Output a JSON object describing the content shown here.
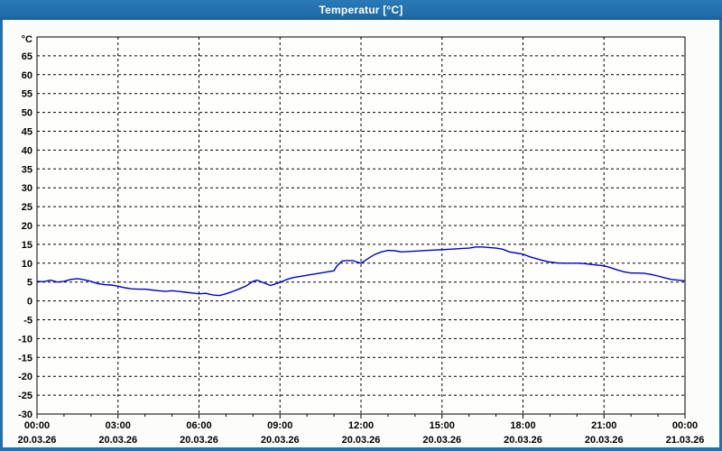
{
  "window": {
    "title": "Temperatur [°C]"
  },
  "colors": {
    "titlebar": "#2171ae",
    "title_text": "#ffffff",
    "window_border": "#2171ae",
    "content_background": "#fcfdfa",
    "plot_background": "#fefefc",
    "grid": "#000000",
    "frame": "#000000",
    "tick_label": "#000000",
    "line": "#0000c8"
  },
  "chart_data": {
    "type": "line",
    "title": "Temperatur [°C]",
    "y_unit_label": "°C",
    "ylim": [
      -30,
      70
    ],
    "y_tick_step": 5,
    "y_tick_labels": [
      65,
      60,
      55,
      50,
      45,
      40,
      35,
      30,
      25,
      20,
      15,
      10,
      5,
      0,
      -5,
      -10,
      -15,
      -20,
      -25,
      -30
    ],
    "x_range_hours": [
      0,
      24
    ],
    "x_major_step_hours": 3,
    "x_minor_step_hours": 1,
    "x_tick_times": [
      "00:00",
      "03:00",
      "06:00",
      "09:00",
      "12:00",
      "15:00",
      "18:00",
      "21:00",
      "00:00"
    ],
    "x_tick_dates": [
      "20.03.26",
      "20.03.26",
      "20.03.26",
      "20.03.26",
      "20.03.26",
      "20.03.26",
      "20.03.26",
      "20.03.26",
      "21.03.26"
    ],
    "grid": "dashed",
    "legend": "none",
    "series": [
      {
        "name": "Temperatur",
        "color": "#0000c8",
        "points": [
          [
            0,
            5.2
          ],
          [
            0.25,
            5.1
          ],
          [
            0.5,
            5.5
          ],
          [
            0.75,
            5.0
          ],
          [
            1,
            5.2
          ],
          [
            1.25,
            5.7
          ],
          [
            1.5,
            5.9
          ],
          [
            1.75,
            5.6
          ],
          [
            2,
            5.2
          ],
          [
            2.25,
            4.6
          ],
          [
            2.5,
            4.3
          ],
          [
            2.75,
            4.2
          ],
          [
            3,
            3.9
          ],
          [
            3.25,
            3.5
          ],
          [
            3.5,
            3.2
          ],
          [
            3.75,
            3.1
          ],
          [
            4,
            3.1
          ],
          [
            4.25,
            2.9
          ],
          [
            4.5,
            2.7
          ],
          [
            4.75,
            2.5
          ],
          [
            5,
            2.7
          ],
          [
            5.25,
            2.5
          ],
          [
            5.5,
            2.3
          ],
          [
            5.75,
            2.1
          ],
          [
            6,
            1.9
          ],
          [
            6.25,
            2.0
          ],
          [
            6.5,
            1.6
          ],
          [
            6.75,
            1.4
          ],
          [
            7,
            1.9
          ],
          [
            7.25,
            2.5
          ],
          [
            7.5,
            3.2
          ],
          [
            7.75,
            4.0
          ],
          [
            8,
            5.2
          ],
          [
            8.15,
            5.5
          ],
          [
            8.4,
            4.8
          ],
          [
            8.65,
            4.1
          ],
          [
            9,
            4.9
          ],
          [
            9.25,
            5.7
          ],
          [
            9.5,
            6.2
          ],
          [
            9.75,
            6.5
          ],
          [
            10,
            6.8
          ],
          [
            10.25,
            7.1
          ],
          [
            10.5,
            7.4
          ],
          [
            10.75,
            7.7
          ],
          [
            11,
            8.0
          ],
          [
            11.1,
            9.2
          ],
          [
            11.3,
            10.6
          ],
          [
            11.5,
            10.7
          ],
          [
            11.7,
            10.7
          ],
          [
            11.85,
            10.3
          ],
          [
            12,
            10.0
          ],
          [
            12.25,
            11.2
          ],
          [
            12.5,
            12.3
          ],
          [
            12.75,
            13.0
          ],
          [
            13,
            13.4
          ],
          [
            13.25,
            13.3
          ],
          [
            13.5,
            13.0
          ],
          [
            13.75,
            13.1
          ],
          [
            14,
            13.2
          ],
          [
            14.5,
            13.4
          ],
          [
            15,
            13.6
          ],
          [
            15.5,
            13.8
          ],
          [
            16,
            14.0
          ],
          [
            16.25,
            14.3
          ],
          [
            16.5,
            14.3
          ],
          [
            17,
            14.0
          ],
          [
            17.25,
            13.7
          ],
          [
            17.5,
            13.0
          ],
          [
            17.75,
            12.7
          ],
          [
            18,
            12.4
          ],
          [
            18.25,
            11.7
          ],
          [
            18.5,
            11.2
          ],
          [
            18.75,
            10.7
          ],
          [
            19,
            10.3
          ],
          [
            19.25,
            10.1
          ],
          [
            19.5,
            10.0
          ],
          [
            19.75,
            10.0
          ],
          [
            20,
            10.0
          ],
          [
            20.25,
            9.9
          ],
          [
            20.5,
            9.7
          ],
          [
            20.75,
            9.5
          ],
          [
            21,
            9.3
          ],
          [
            21.25,
            8.8
          ],
          [
            21.5,
            8.2
          ],
          [
            21.75,
            7.7
          ],
          [
            22,
            7.4
          ],
          [
            22.25,
            7.4
          ],
          [
            22.5,
            7.3
          ],
          [
            22.75,
            7.0
          ],
          [
            23,
            6.6
          ],
          [
            23.25,
            6.1
          ],
          [
            23.5,
            5.7
          ],
          [
            23.75,
            5.5
          ],
          [
            24,
            5.3
          ]
        ]
      }
    ]
  }
}
